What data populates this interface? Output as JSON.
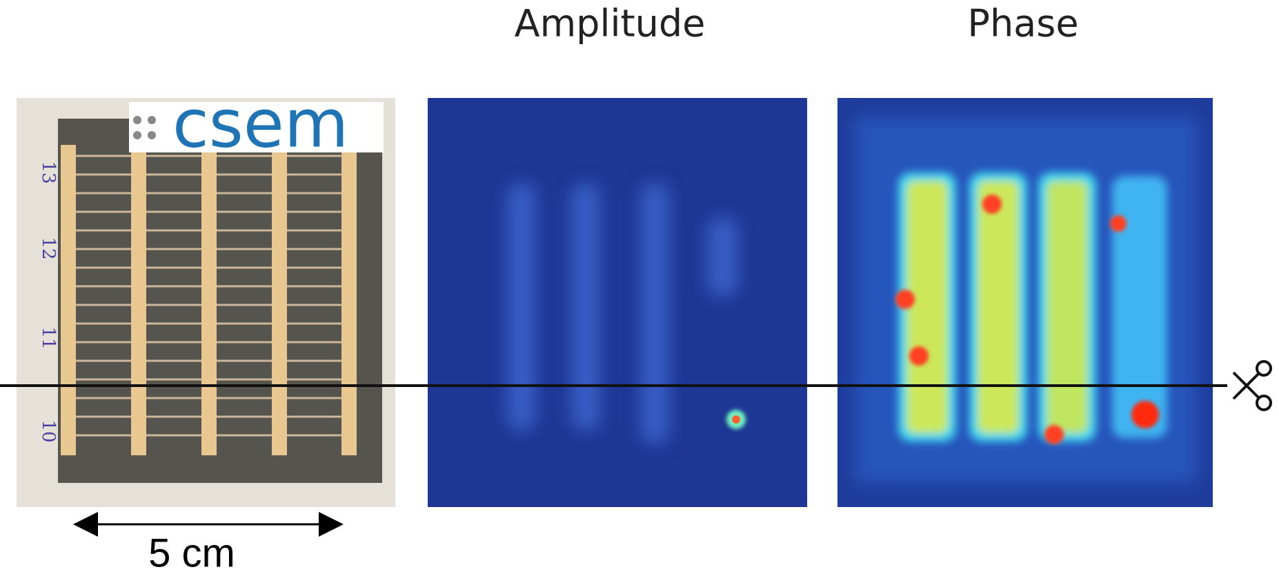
{
  "titles": {
    "amplitude": "Amplitude",
    "phase": "Phase"
  },
  "logo": "csem",
  "scale_label": "5 cm",
  "sample_labels": [
    "13",
    "12",
    "11",
    "10"
  ]
}
